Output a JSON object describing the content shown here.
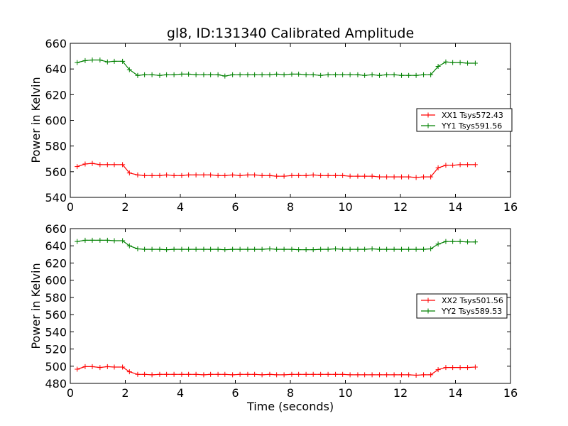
{
  "chart_data": [
    {
      "type": "line",
      "title": "gl8, ID:131340 Calibrated Amplitude",
      "xlabel": "",
      "ylabel": "Power in Kelvin",
      "xlim": [
        0,
        16
      ],
      "ylim": [
        540,
        660
      ],
      "xticks": [
        "0",
        "2",
        "4",
        "6",
        "8",
        "10",
        "12",
        "14",
        "16"
      ],
      "yticks": [
        "540",
        "560",
        "580",
        "600",
        "620",
        "640",
        "660"
      ],
      "legend_position": "center-right",
      "x": [
        0.25,
        0.54,
        0.8,
        1.08,
        1.35,
        1.6,
        1.9,
        2.15,
        2.45,
        2.7,
        2.97,
        3.25,
        3.5,
        3.77,
        4.05,
        4.3,
        4.57,
        4.85,
        5.1,
        5.37,
        5.62,
        5.9,
        6.17,
        6.45,
        6.7,
        6.97,
        7.25,
        7.5,
        7.77,
        8.05,
        8.3,
        8.57,
        8.83,
        9.1,
        9.37,
        9.64,
        9.9,
        10.17,
        10.45,
        10.7,
        10.97,
        11.24,
        11.5,
        11.77,
        12.04,
        12.3,
        12.57,
        12.84,
        13.1,
        13.37,
        13.65,
        13.9,
        14.17,
        14.44,
        14.72
      ],
      "series": [
        {
          "name": "XX1 Tsys572.43",
          "color": "#ff0000",
          "values": [
            564,
            566,
            566.5,
            565.5,
            565.5,
            565.5,
            565.5,
            559,
            557.5,
            557,
            557,
            557,
            557.5,
            557,
            557,
            557.5,
            557.5,
            557.5,
            557.5,
            557,
            557,
            557.5,
            557,
            557.5,
            557.5,
            557,
            557,
            556.5,
            556.5,
            557,
            557,
            557,
            557.5,
            557,
            557,
            557,
            557,
            556.5,
            556.5,
            556.5,
            556.5,
            556,
            556,
            556,
            556,
            556,
            555.5,
            556,
            556,
            563,
            565,
            565,
            565.5,
            565.5,
            565.5
          ]
        },
        {
          "name": "YY1 Tsys591.56",
          "color": "#008000",
          "values": [
            645,
            646.5,
            647,
            647,
            645.5,
            646,
            646,
            639.5,
            635,
            635.5,
            635.5,
            635,
            635.5,
            635.5,
            636,
            636,
            635.5,
            635.5,
            635.5,
            635.5,
            634.5,
            635.5,
            635.5,
            635.5,
            635.5,
            635.5,
            635.5,
            636,
            635.5,
            636,
            636,
            635.5,
            635.5,
            635,
            635.5,
            635.5,
            635.5,
            635.5,
            635.5,
            635,
            635.5,
            635,
            635.5,
            635.5,
            635,
            635,
            635,
            635.5,
            635.5,
            642,
            645.5,
            645,
            645,
            644.5,
            644.5
          ]
        }
      ]
    },
    {
      "type": "line",
      "title": "",
      "xlabel": "Time (seconds)",
      "ylabel": "Power in Kelvin",
      "xlim": [
        0,
        16
      ],
      "ylim": [
        480,
        660
      ],
      "xticks": [
        "0",
        "2",
        "4",
        "6",
        "8",
        "10",
        "12",
        "14",
        "16"
      ],
      "yticks": [
        "480",
        "500",
        "520",
        "540",
        "560",
        "580",
        "600",
        "620",
        "640",
        "660"
      ],
      "legend_position": "center-right",
      "x": [
        0.25,
        0.54,
        0.8,
        1.08,
        1.35,
        1.6,
        1.9,
        2.15,
        2.45,
        2.7,
        2.97,
        3.25,
        3.5,
        3.77,
        4.05,
        4.3,
        4.57,
        4.85,
        5.1,
        5.37,
        5.62,
        5.9,
        6.17,
        6.45,
        6.7,
        6.97,
        7.25,
        7.5,
        7.77,
        8.05,
        8.3,
        8.57,
        8.83,
        9.1,
        9.37,
        9.64,
        9.9,
        10.17,
        10.45,
        10.7,
        10.97,
        11.24,
        11.5,
        11.77,
        12.04,
        12.3,
        12.57,
        12.84,
        13.1,
        13.37,
        13.65,
        13.9,
        14.17,
        14.44,
        14.72
      ],
      "series": [
        {
          "name": "XX2 Tsys501.56",
          "color": "#ff0000",
          "values": [
            496.5,
            499.5,
            499.5,
            498.5,
            499.5,
            499,
            499,
            493.5,
            490.5,
            490.5,
            490,
            490.5,
            490.5,
            490.5,
            490.5,
            490.5,
            490.5,
            490,
            490.5,
            490.5,
            490.5,
            490,
            490.5,
            490.5,
            490.5,
            490,
            490.5,
            490,
            490,
            490.5,
            490.5,
            490.5,
            490.5,
            490.5,
            490.5,
            490.5,
            490.5,
            490,
            490,
            490,
            490,
            490,
            490,
            490,
            490,
            490,
            489.5,
            490,
            490,
            496,
            498.5,
            498.5,
            498.5,
            498.5,
            499
          ]
        },
        {
          "name": "YY2 Tsys589.53",
          "color": "#008000",
          "values": [
            645,
            646.5,
            646.5,
            646.5,
            646.5,
            646,
            646,
            640,
            636.5,
            636,
            636,
            636,
            635.5,
            636,
            636,
            636,
            636,
            636,
            636,
            636,
            635.5,
            636,
            636,
            636,
            636,
            636,
            636.5,
            636,
            636,
            636,
            635.5,
            635.5,
            635.5,
            636,
            636,
            636.5,
            636,
            636,
            636,
            636,
            636.5,
            636,
            636,
            636,
            636,
            636,
            636,
            636,
            636.5,
            642,
            645,
            645,
            645,
            644.5,
            644.5
          ]
        }
      ]
    }
  ]
}
